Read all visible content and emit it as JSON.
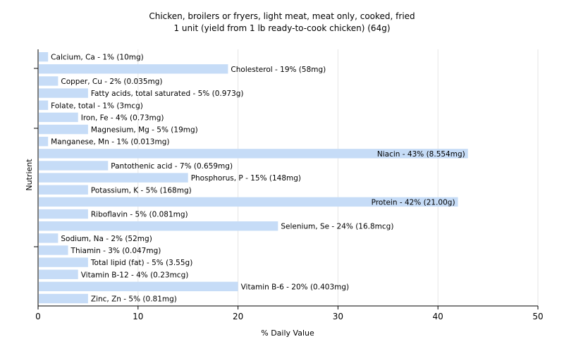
{
  "chart_data": {
    "type": "bar",
    "orientation": "horizontal",
    "title": "Chicken, broilers or fryers, light meat, meat only, cooked, fried",
    "subtitle": "1 unit (yield from 1 lb ready-to-cook chicken) (64g)",
    "xlabel": "% Daily Value",
    "ylabel": "Nutrient",
    "xlim": [
      0,
      50
    ],
    "xticks": [
      0,
      10,
      20,
      30,
      40,
      50
    ],
    "grid": true,
    "bar_color": "#c6dcf7",
    "categories": [
      "Calcium, Ca",
      "Cholesterol",
      "Copper, Cu",
      "Fatty acids, total saturated",
      "Folate, total",
      "Iron, Fe",
      "Magnesium, Mg",
      "Manganese, Mn",
      "Niacin",
      "Pantothenic acid",
      "Phosphorus, P",
      "Potassium, K",
      "Protein",
      "Riboflavin",
      "Selenium, Se",
      "Sodium, Na",
      "Thiamin",
      "Total lipid (fat)",
      "Vitamin B-12",
      "Vitamin B-6",
      "Zinc, Zn"
    ],
    "values": [
      1,
      19,
      2,
      5,
      1,
      4,
      5,
      1,
      43,
      7,
      15,
      5,
      42,
      5,
      24,
      2,
      3,
      5,
      4,
      20,
      5
    ],
    "labels": [
      "Calcium, Ca - 1% (10mg)",
      "Cholesterol - 19% (58mg)",
      "Copper, Cu - 2% (0.035mg)",
      "Fatty acids, total saturated - 5% (0.973g)",
      "Folate, total - 1% (3mcg)",
      "Iron, Fe - 4% (0.73mg)",
      "Magnesium, Mg - 5% (19mg)",
      "Manganese, Mn - 1% (0.013mg)",
      "Niacin - 43% (8.554mg)",
      "Pantothenic acid - 7% (0.659mg)",
      "Phosphorus, P - 15% (148mg)",
      "Potassium, K - 5% (168mg)",
      "Protein - 42% (21.00g)",
      "Riboflavin - 5% (0.081mg)",
      "Selenium, Se - 24% (16.8mcg)",
      "Sodium, Na - 2% (52mg)",
      "Thiamin - 3% (0.047mg)",
      "Total lipid (fat) - 5% (3.55g)",
      "Vitamin B-12 - 4% (0.23mcg)",
      "Vitamin B-6 - 20% (0.403mg)",
      "Zinc, Zn - 5% (0.81mg)"
    ]
  }
}
